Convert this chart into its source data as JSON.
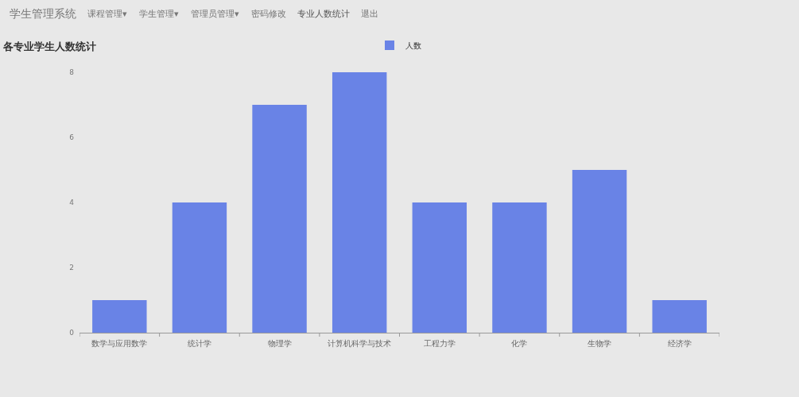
{
  "chart_data": {
    "type": "bar",
    "title": "各专业学生人数统计",
    "categories": [
      "数学与应用数学",
      "统计学",
      "物理学",
      "计算机科学与技术",
      "工程力学",
      "化学",
      "生物学",
      "经济学"
    ],
    "series": [
      {
        "name": "人数",
        "color": "#6983e6",
        "values": [
          1,
          4,
          7,
          8,
          4,
          4,
          5,
          1
        ]
      }
    ],
    "ylim": [
      0,
      8
    ],
    "yticks": [
      0,
      2,
      4,
      6,
      8
    ],
    "legend": "top",
    "annotations": [
      "学生管理系统",
      "课程管理▾",
      "学生管理▾",
      "管理员管理▾",
      "密码修改",
      "专业人数统计",
      "退出"
    ]
  }
}
